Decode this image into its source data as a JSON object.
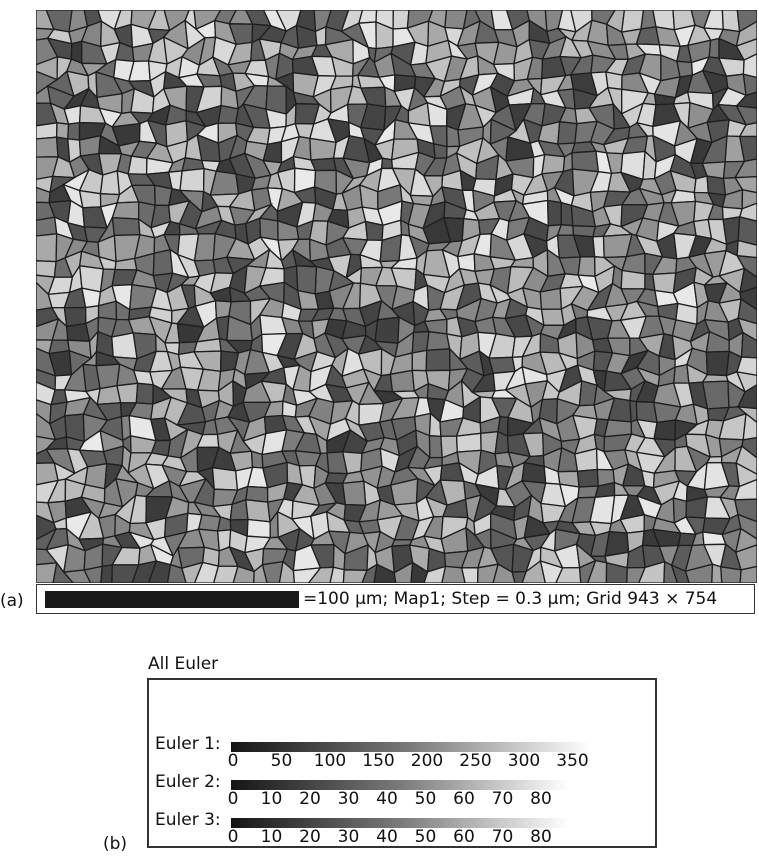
{
  "panel_a_label": "(a)",
  "panel_b_label": "(b)",
  "scale_bar": {
    "text": "=100 µm; Map1; Step = 0.3 µm; Grid 943 × 754"
  },
  "legend": {
    "title": "All Euler",
    "rows": [
      {
        "label": "Euler 1:",
        "ticks": [
          "0",
          "50",
          "100",
          "150",
          "200",
          "250",
          "300",
          "350"
        ],
        "max": 360
      },
      {
        "label": "Euler 2:",
        "ticks": [
          "0",
          "10",
          "20",
          "30",
          "40",
          "50",
          "60",
          "70",
          "80"
        ],
        "max": 90
      },
      {
        "label": "Euler 3:",
        "ticks": [
          "0",
          "10",
          "20",
          "30",
          "40",
          "50",
          "60",
          "70",
          "80"
        ],
        "max": 90
      }
    ]
  }
}
